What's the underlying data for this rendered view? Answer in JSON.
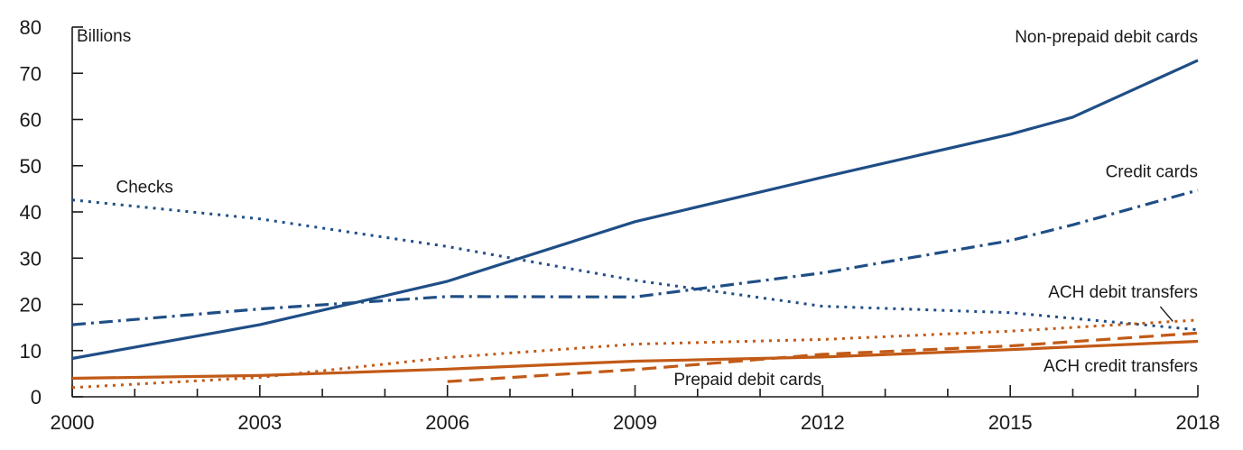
{
  "chart_data": {
    "type": "line",
    "title": "",
    "xlabel": "",
    "ylabel": "Billions",
    "xlim": [
      2000,
      2018
    ],
    "ylim": [
      0,
      80
    ],
    "grid": false,
    "legend": "inline labels",
    "x_ticks": [
      "2000",
      "2003",
      "2006",
      "2009",
      "2012",
      "2015",
      "2018"
    ],
    "y_ticks": [
      "0",
      "10",
      "20",
      "30",
      "40",
      "50",
      "60",
      "70",
      "80"
    ],
    "series": [
      {
        "name": "Non-prepaid debit cards",
        "color": "#1f4e86",
        "style": "solid",
        "points": [
          [
            2000,
            8.3
          ],
          [
            2003,
            15.6
          ],
          [
            2006,
            25.0
          ],
          [
            2009,
            37.9
          ],
          [
            2012,
            47.5
          ],
          [
            2015,
            56.8
          ],
          [
            2016,
            60.5
          ],
          [
            2018,
            72.8
          ]
        ]
      },
      {
        "name": "Credit cards",
        "color": "#1f4e86",
        "style": "dashdot",
        "points": [
          [
            2000,
            15.6
          ],
          [
            2003,
            19.0
          ],
          [
            2006,
            21.7
          ],
          [
            2009,
            21.6
          ],
          [
            2012,
            26.8
          ],
          [
            2015,
            33.8
          ],
          [
            2016,
            37.2
          ],
          [
            2018,
            44.7
          ]
        ]
      },
      {
        "name": "Checks",
        "color": "#1f4e86",
        "style": "dotted",
        "points": [
          [
            2000,
            42.6
          ],
          [
            2003,
            38.5
          ],
          [
            2006,
            32.5
          ],
          [
            2009,
            25.2
          ],
          [
            2012,
            19.6
          ],
          [
            2015,
            18.2
          ],
          [
            2018,
            14.5
          ]
        ]
      },
      {
        "name": "ACH debit transfers",
        "color": "#c25a17",
        "style": "dotted",
        "points": [
          [
            2000,
            2.0
          ],
          [
            2003,
            4.2
          ],
          [
            2006,
            8.5
          ],
          [
            2009,
            11.4
          ],
          [
            2012,
            12.4
          ],
          [
            2015,
            14.2
          ],
          [
            2018,
            16.6
          ]
        ]
      },
      {
        "name": "ACH credit transfers",
        "color": "#c25a17",
        "style": "solid",
        "points": [
          [
            2000,
            4.0
          ],
          [
            2003,
            4.6
          ],
          [
            2006,
            6.0
          ],
          [
            2009,
            7.7
          ],
          [
            2012,
            8.6
          ],
          [
            2015,
            10.2
          ],
          [
            2018,
            12.0
          ]
        ]
      },
      {
        "name": "Prepaid debit cards",
        "color": "#c25a17",
        "style": "dashed",
        "points": [
          [
            2006,
            3.3
          ],
          [
            2009,
            5.9
          ],
          [
            2012,
            9.2
          ],
          [
            2015,
            11.0
          ],
          [
            2018,
            13.8
          ]
        ]
      }
    ],
    "annotations": {
      "units": "Billions",
      "labels": [
        {
          "text": "Non-prepaid debit cards",
          "x": 2018,
          "y": 76.7,
          "anchor": "end"
        },
        {
          "text": "Credit cards",
          "x": 2018,
          "y": 47.5,
          "anchor": "end"
        },
        {
          "text": "Checks",
          "x": 2000.7,
          "y": 44.2,
          "anchor": "start"
        },
        {
          "text": "ACH debit transfers",
          "x": 2018,
          "y": 21.5,
          "anchor": "end"
        },
        {
          "text": "ACH credit transfers",
          "x": 2018,
          "y": 5.5,
          "anchor": "end"
        },
        {
          "text": "Prepaid debit cards",
          "x": 2010.8,
          "y": 2.5,
          "anchor": "middle"
        }
      ],
      "leader": {
        "from": [
          2017.4,
          19.5
        ],
        "to": [
          2017.6,
          16.3
        ]
      }
    }
  }
}
